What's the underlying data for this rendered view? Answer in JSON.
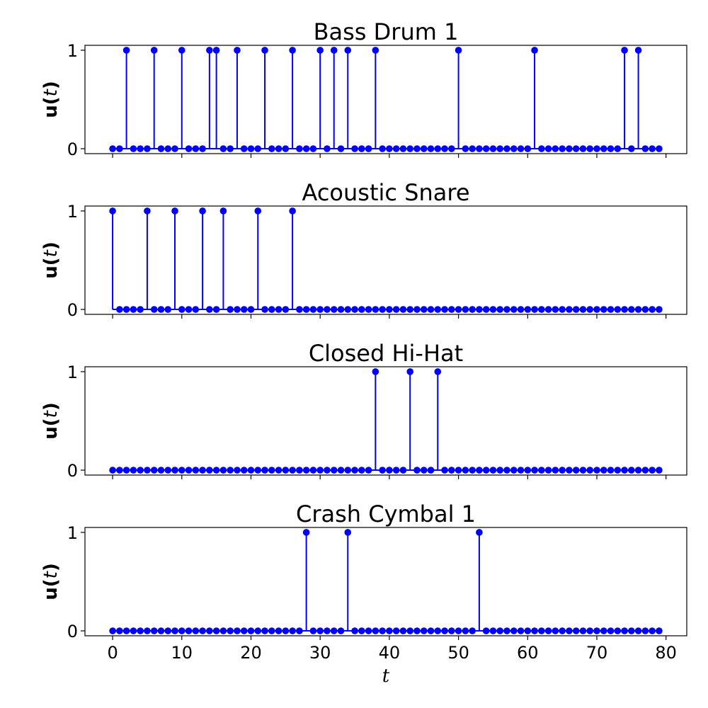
{
  "chart_data": {
    "type": "stem",
    "x_label": "t",
    "y_label": {
      "prefix": "u(",
      "var": "t",
      "suffix": ")"
    },
    "xlim": [
      -4,
      83
    ],
    "ylim": [
      -0.05,
      1.05
    ],
    "x_ticks": [
      0,
      10,
      20,
      30,
      40,
      50,
      60,
      70,
      80
    ],
    "y_ticks": [
      0,
      1
    ],
    "t_range": [
      0,
      79
    ],
    "color": "#0000ff",
    "panels": [
      {
        "title": "Bass Drum 1",
        "onsets": [
          2,
          6,
          10,
          14,
          15,
          18,
          22,
          26,
          30,
          32,
          34,
          38,
          50,
          61,
          74,
          76
        ]
      },
      {
        "title": "Acoustic Snare",
        "onsets": [
          0,
          5,
          9,
          13,
          16,
          21,
          26
        ]
      },
      {
        "title": "Closed Hi-Hat",
        "onsets": [
          38,
          43,
          47
        ]
      },
      {
        "title": "Crash Cymbal 1",
        "onsets": [
          28,
          34,
          53
        ]
      }
    ]
  }
}
